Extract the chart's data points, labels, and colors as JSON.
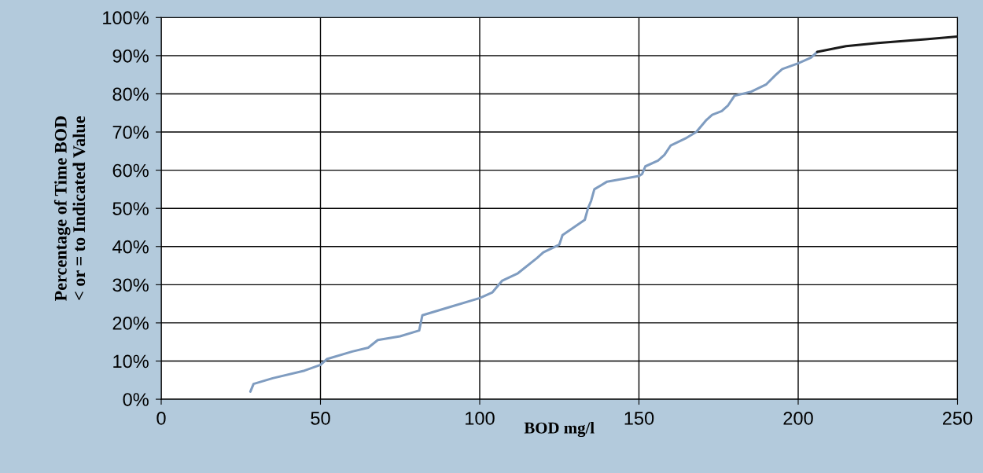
{
  "chart_data": {
    "type": "line",
    "xlabel": "BOD mg/l",
    "ylabel": "Percentage of Time BOD\n< or = to Indicated Value",
    "xlim": [
      0,
      250
    ],
    "xticks": [
      0,
      50,
      100,
      150,
      200,
      250
    ],
    "ylim": [
      0,
      100
    ],
    "yticks": [
      {
        "value": 0,
        "label": "0%"
      },
      {
        "value": 10,
        "label": "10%"
      },
      {
        "value": 20,
        "label": "20%"
      },
      {
        "value": 30,
        "label": "30%"
      },
      {
        "value": 40,
        "label": "40%"
      },
      {
        "value": 50,
        "label": "50%"
      },
      {
        "value": 60,
        "label": "60%"
      },
      {
        "value": 70,
        "label": "70%"
      },
      {
        "value": 80,
        "label": "80%"
      },
      {
        "value": 90,
        "label": "90%"
      },
      {
        "value": 100,
        "label": "100%"
      }
    ],
    "grid": true,
    "marker": "none",
    "line_style": "solid",
    "series": [
      {
        "color": "#7f9cc0",
        "x": [
          28,
          29,
          35,
          45,
          50,
          52,
          60,
          65,
          68,
          75,
          81,
          82,
          90,
          100,
          104,
          107,
          112,
          118,
          120,
          125,
          126,
          133,
          134,
          135,
          136,
          140,
          150,
          151,
          152,
          156,
          158,
          160,
          165,
          168,
          171,
          173,
          176,
          178,
          180,
          185,
          190,
          193,
          195,
          200,
          204,
          206
        ],
        "values": [
          2,
          4,
          5.5,
          7.5,
          9,
          10.5,
          12.5,
          13.5,
          15.5,
          16.5,
          18,
          22,
          24,
          26.5,
          28,
          31,
          33,
          37,
          38.5,
          40.5,
          43,
          47,
          50,
          52,
          55,
          57,
          58.5,
          59,
          61,
          62.5,
          64,
          66.5,
          68.5,
          70,
          73,
          74.5,
          75.5,
          77,
          79.5,
          80.5,
          82.5,
          85,
          86.5,
          88,
          89.5,
          91
        ]
      },
      {
        "color": "#1a1a1a",
        "x": [
          206,
          215,
          225,
          240,
          250
        ],
        "values": [
          91,
          92.5,
          93.3,
          94.3,
          95
        ]
      }
    ]
  }
}
